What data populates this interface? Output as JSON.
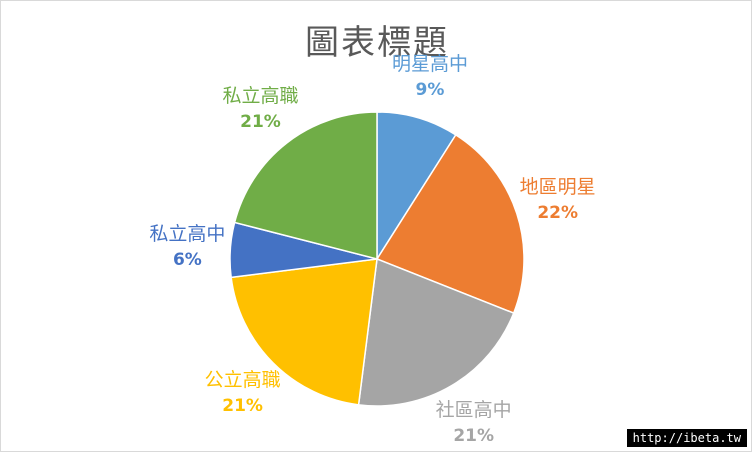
{
  "chart_data": {
    "type": "pie",
    "title": "圖表標題",
    "start_angle_deg": 0,
    "direction": "clockwise",
    "slices": [
      {
        "label": "明星高中",
        "percent_label": "9%",
        "value": 9,
        "color": "#5b9bd5"
      },
      {
        "label": "地區明星",
        "percent_label": "22%",
        "value": 22,
        "color": "#ed7d31"
      },
      {
        "label": "社區高中",
        "percent_label": "21%",
        "value": 21,
        "color": "#a5a5a5"
      },
      {
        "label": "公立高職",
        "percent_label": "21%",
        "value": 21,
        "color": "#ffc000"
      },
      {
        "label": "私立高中",
        "percent_label": "6%",
        "value": 6,
        "color": "#4472c4"
      },
      {
        "label": "私立高職",
        "percent_label": "21%",
        "value": 21,
        "color": "#70ad47"
      }
    ]
  },
  "watermark": "http://ibeta.tw"
}
